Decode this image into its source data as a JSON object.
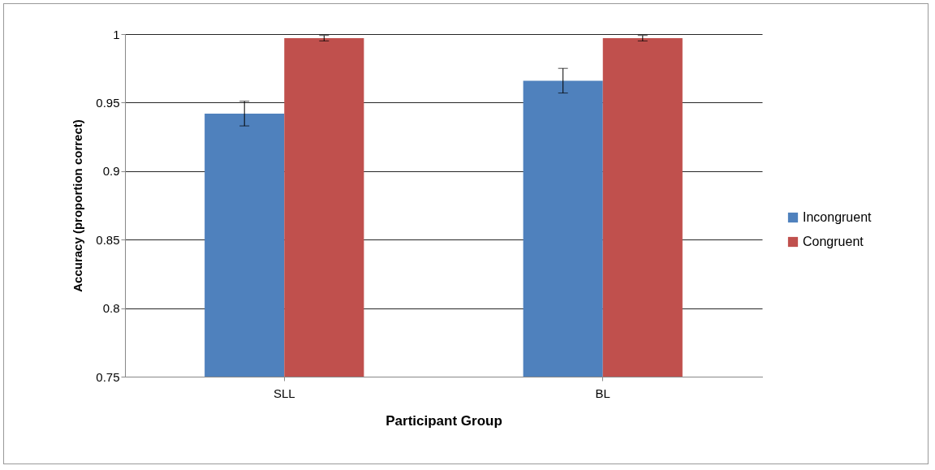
{
  "chart_data": {
    "type": "bar",
    "xlabel": "Participant Group",
    "ylabel": "Accuracy (proportion correct)",
    "categories": [
      "SLL",
      "BL"
    ],
    "series": [
      {
        "name": "Incongruent",
        "color": "#4f81bd",
        "values": [
          0.942,
          0.966
        ],
        "errors": [
          0.009,
          0.009
        ]
      },
      {
        "name": "Congruent",
        "color": "#c0504d",
        "values": [
          0.997,
          0.997
        ],
        "errors": [
          0.002,
          0.002
        ]
      }
    ],
    "ylim": [
      0.75,
      1
    ],
    "yticks": [
      0.75,
      0.8,
      0.85,
      0.9,
      0.95,
      1
    ],
    "grid": "y",
    "legend": "right"
  }
}
